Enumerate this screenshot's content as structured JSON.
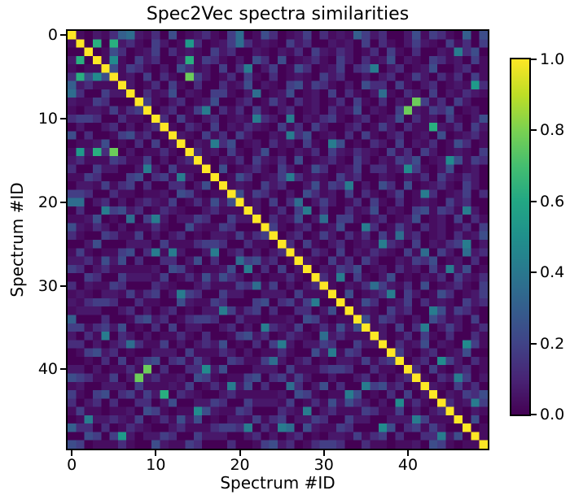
{
  "chart_data": {
    "type": "heatmap",
    "title": "Spec2Vec spectra similarities",
    "xlabel": "Spectrum #ID",
    "ylabel": "Spectrum #ID",
    "n": 50,
    "x_ticks": [
      0,
      10,
      20,
      30,
      40
    ],
    "y_ticks": [
      0,
      10,
      20,
      30,
      40
    ],
    "value_range": [
      0.0,
      1.0
    ],
    "colorbar": {
      "tick_labels": [
        "1.0",
        "0.8",
        "0.6",
        "0.4",
        "0.2",
        "0.0"
      ],
      "tick_values": [
        1.0,
        0.8,
        0.6,
        0.4,
        0.2,
        0.0
      ],
      "position": "right"
    },
    "colormap": "viridis",
    "colormap_stops": [
      [
        0.0,
        "#440154"
      ],
      [
        0.1,
        "#482475"
      ],
      [
        0.2,
        "#404387"
      ],
      [
        0.3,
        "#345e8d"
      ],
      [
        0.4,
        "#29788e"
      ],
      [
        0.5,
        "#20908c"
      ],
      [
        0.6,
        "#22a784"
      ],
      [
        0.7,
        "#44be70"
      ],
      [
        0.8,
        "#7ad151"
      ],
      [
        0.9,
        "#bdde26"
      ],
      [
        1.0,
        "#fde725"
      ]
    ],
    "palette16": [
      "#440154",
      "#470d60",
      "#48186a",
      "#472d7b",
      "#433e85",
      "#3d4d8a",
      "#355f8d",
      "#2e6d8e",
      "#287c8e",
      "#228b8d",
      "#1f9a8a",
      "#29af7f",
      "#44bf70",
      "#6ccd5a",
      "#a2da37",
      "#fde725"
    ],
    "encoding": "matrix_upper_hex[i] lists cells (i,i)..(i,49) as hex digits; similarity value = digit/15; matrix is symmetric; highlights [row,col,digit] override both (row,col) and (col,row)",
    "matrix_upper_hex": [
      "f1021304213050123104201530124031210423002514310205",
      "f050123104201530124031210423002120403102421041304",
      "f01530124031210423002102130421320130410300214350",
      "f1210423002514310205305012310420312502104312041",
      "f514310205312040310240153012403410230125002301",
      "f12040310242013041030121042300202301420313041",
      "f2013041030031250210451431020533041023012103",
      "f031250210441023012501204031024103204021321",
      "f41023012500230142031201304103021041304200",
      "f0230142031304102301203125021040214350120",
      "f304102301210320402134102301250312041025",
      "f10320402132104130420023014203110213042",
      "f2104130420021435012030410230120501231",
      "f021435012031204102501032040213015301",
      "f31204102501021304213210413042012104",
      "f1021304213050123104202143501205143",
      "f050123104201530124033120410250120",
      "f01530124031210423002102130421320",
      "f1210423002514310205305012310420",
      "f514310205312040310240153012403",
      "f12040310242013041030121042300",
      "f2013041030031250210451431020",
      "f031250210441023012501204031",
      "f41023012500230142031201304",
      "f0230142031304102301203125",
      "f304102301210320402134102",
      "f10320402132104130420023",
      "f2104130420021435012030",
      "f021435012031204102501",
      "f31204102501021304213",
      "f1021304213050123104",
      "f050123104201530124",
      "f01530124031210423",
      "f1210423002514310",
      "f514310205312040",
      "f12040310242013",
      "f2013041030031",
      "f031250210441",
      "f41023012500",
      "f0230142031",
      "f304102301",
      "f10320402",
      "f2104130",
      "f021435",
      "f31204",
      "f1021",
      "f050",
      "f01",
      "f1",
      "f"
    ],
    "highlights": [
      [
        0,
        6,
        6
      ],
      [
        0,
        7,
        7
      ],
      [
        0,
        20,
        7
      ],
      [
        0,
        34,
        6
      ],
      [
        0,
        47,
        6
      ],
      [
        1,
        3,
        11
      ],
      [
        1,
        5,
        11
      ],
      [
        1,
        14,
        10
      ],
      [
        1,
        20,
        7
      ],
      [
        2,
        46,
        8
      ],
      [
        3,
        5,
        9
      ],
      [
        3,
        14,
        11
      ],
      [
        4,
        21,
        8
      ],
      [
        4,
        36,
        8
      ],
      [
        5,
        14,
        13
      ],
      [
        6,
        48,
        10
      ],
      [
        7,
        22,
        7
      ],
      [
        7,
        37,
        7
      ],
      [
        8,
        41,
        13
      ],
      [
        9,
        16,
        8
      ],
      [
        9,
        40,
        13
      ],
      [
        10,
        22,
        8
      ],
      [
        10,
        26,
        8
      ],
      [
        11,
        43,
        11
      ],
      [
        12,
        26,
        8
      ],
      [
        13,
        17,
        8
      ],
      [
        13,
        31,
        8
      ],
      [
        15,
        45,
        9
      ],
      [
        16,
        40,
        9
      ],
      [
        17,
        26,
        8
      ],
      [
        18,
        33,
        8
      ],
      [
        19,
        42,
        8
      ],
      [
        20,
        27,
        7
      ],
      [
        21,
        28,
        8
      ],
      [
        21,
        47,
        8
      ],
      [
        22,
        30,
        7
      ],
      [
        23,
        35,
        8
      ],
      [
        24,
        39,
        7
      ],
      [
        25,
        37,
        8
      ],
      [
        25,
        47,
        8
      ],
      [
        26,
        42,
        7
      ],
      [
        26,
        47,
        7
      ],
      [
        28,
        45,
        8
      ],
      [
        29,
        32,
        8
      ],
      [
        30,
        36,
        7
      ],
      [
        31,
        38,
        8
      ],
      [
        33,
        43,
        8
      ],
      [
        35,
        42,
        8
      ],
      [
        37,
        47,
        9
      ],
      [
        39,
        44,
        9
      ],
      [
        41,
        46,
        8
      ],
      [
        44,
        48,
        8
      ]
    ]
  }
}
